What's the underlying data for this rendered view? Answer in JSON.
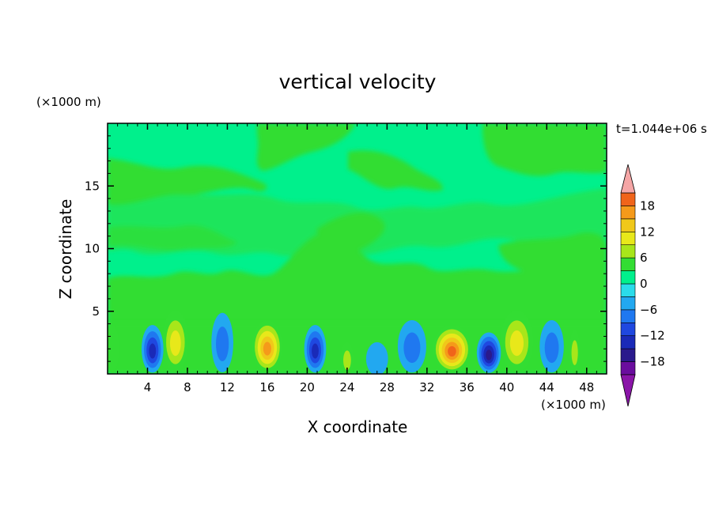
{
  "chart_data": {
    "type": "heatmap",
    "title": "vertical velocity",
    "xlabel": "X coordinate",
    "ylabel": "Z coordinate",
    "x_unit": "(×1000 m)",
    "y_unit": "(×1000 m)",
    "time_label": "t=1.044e+06 s",
    "xlim": [
      0,
      50
    ],
    "ylim": [
      0,
      20
    ],
    "x_ticks": [
      4,
      8,
      12,
      16,
      20,
      24,
      28,
      32,
      36,
      40,
      44,
      48
    ],
    "y_ticks": [
      5,
      10,
      15
    ],
    "colorbar": {
      "labels": [
        18,
        12,
        6,
        0,
        -6,
        -12,
        -18
      ],
      "levels": [
        -21,
        -18,
        -15,
        -12,
        -9,
        -6,
        -3,
        0,
        3,
        6,
        9,
        12,
        15,
        18,
        21
      ],
      "colors": [
        "#6a0d9e",
        "#2a1a8c",
        "#1a2ab8",
        "#1f48e0",
        "#1f78f0",
        "#22a8f0",
        "#2adcea",
        "#00f08c",
        "#33dd33",
        "#a8e61a",
        "#e8e81a",
        "#f0c81a",
        "#f59a1a",
        "#f0641a",
        "#e41a1a",
        "#c81414"
      ],
      "over_color": "#f5a6a6",
      "under_color": "#8a15a8"
    },
    "features": [
      {
        "x": 34.5,
        "z": 2.0,
        "w": 3.5,
        "value": 18
      },
      {
        "x": 16.0,
        "z": 2.2,
        "w": 2.8,
        "value": 16
      },
      {
        "x": 6.8,
        "z": 2.6,
        "w": 2.4,
        "value": 9
      },
      {
        "x": 41.0,
        "z": 2.6,
        "w": 3.0,
        "value": 10
      },
      {
        "x": 38.2,
        "z": 1.7,
        "w": 2.2,
        "value": -15
      },
      {
        "x": 20.8,
        "z": 2.0,
        "w": 2.0,
        "value": -12
      },
      {
        "x": 4.5,
        "z": 2.0,
        "w": 2.0,
        "value": -13
      },
      {
        "x": 44.5,
        "z": 2.2,
        "w": 2.2,
        "value": -8
      },
      {
        "x": 30.5,
        "z": 2.2,
        "w": 2.6,
        "value": -8
      },
      {
        "x": 11.5,
        "z": 2.5,
        "w": 2.0,
        "value": -6
      },
      {
        "x": 24.0,
        "z": 1.2,
        "w": 1.2,
        "value": 6
      },
      {
        "x": 46.8,
        "z": 1.8,
        "w": 1.0,
        "value": 6
      },
      {
        "x": 0.5,
        "z": 2.0,
        "w": 1.2,
        "value": 5
      },
      {
        "x": 27.0,
        "z": 1.2,
        "w": 2.0,
        "value": -5
      }
    ]
  }
}
